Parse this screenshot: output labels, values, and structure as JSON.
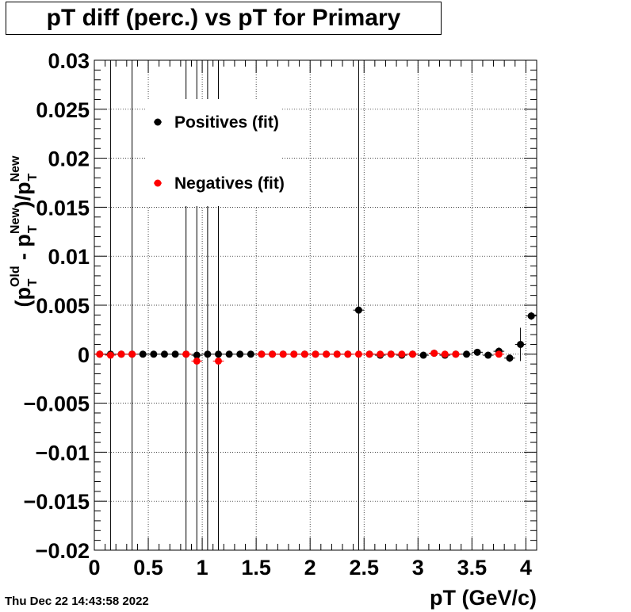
{
  "title": "pT diff (perc.) vs pT for Primary",
  "timestamp": "Thu Dec 22 14:43:58 2022",
  "chart_data": {
    "type": "scatter",
    "xlabel": "pT (GeV/c)",
    "ylabel": "(p_T^Old - p_T^New)/p_T^New",
    "ylabel_parts": {
      "open": "(p",
      "sup1": "Old",
      "sub1": "T",
      "mid": " - p",
      "sup2": "New",
      "sub2": "T",
      "close": ")/p",
      "sup3": "New",
      "sub3": "T"
    },
    "xlim": [
      0,
      4.1
    ],
    "ylim": [
      -0.02,
      0.03
    ],
    "x_ticks": [
      0,
      0.5,
      1,
      1.5,
      2,
      2.5,
      3,
      3.5,
      4
    ],
    "x_tick_labels": [
      "0",
      "0.5",
      "1",
      "1.5",
      "2",
      "2.5",
      "3",
      "3.5",
      "4"
    ],
    "y_ticks": [
      -0.02,
      -0.015,
      -0.01,
      -0.005,
      0,
      0.005,
      0.01,
      0.015,
      0.02,
      0.025,
      0.03
    ],
    "y_tick_labels": [
      "−0.02",
      "−0.015",
      "−0.01",
      "−0.005",
      "0",
      "0.005",
      "0.01",
      "0.015",
      "0.02",
      "0.025",
      "0.03"
    ],
    "grid": true,
    "legend_position": "top-left",
    "series": [
      {
        "name": "Positives (fit)",
        "color": "#000000",
        "points": [
          {
            "x": 0.05,
            "y": 0.0,
            "err": 0.0
          },
          {
            "x": 0.15,
            "y": 0.0,
            "err": 0.0
          },
          {
            "x": 0.25,
            "y": 0.0,
            "err": 0.0
          },
          {
            "x": 0.35,
            "y": 0.0,
            "err": 0.0
          },
          {
            "x": 0.45,
            "y": 0.0,
            "err": 0.0
          },
          {
            "x": 0.55,
            "y": 0.0,
            "err": 0.0
          },
          {
            "x": 0.65,
            "y": 0.0,
            "err": 0.0
          },
          {
            "x": 0.75,
            "y": 0.0,
            "err": 0.0
          },
          {
            "x": 0.85,
            "y": 0.0,
            "err": 0.0
          },
          {
            "x": 0.95,
            "y": -0.0001,
            "err": 0.0
          },
          {
            "x": 1.05,
            "y": 0.0,
            "err": 0.0
          },
          {
            "x": 1.15,
            "y": 0.0,
            "err": 0.0
          },
          {
            "x": 1.25,
            "y": 0.0,
            "err": 0.0
          },
          {
            "x": 1.35,
            "y": 0.0,
            "err": 0.0
          },
          {
            "x": 1.45,
            "y": 0.0,
            "err": 0.0
          },
          {
            "x": 1.55,
            "y": 0.0,
            "err": 0.0
          },
          {
            "x": 1.65,
            "y": 0.0,
            "err": 0.0
          },
          {
            "x": 1.75,
            "y": 0.0,
            "err": 0.0
          },
          {
            "x": 1.85,
            "y": 0.0,
            "err": 0.0
          },
          {
            "x": 1.95,
            "y": 0.0,
            "err": 0.0
          },
          {
            "x": 2.05,
            "y": 0.0,
            "err": 0.0
          },
          {
            "x": 2.15,
            "y": 0.0,
            "err": 0.0
          },
          {
            "x": 2.25,
            "y": 0.0,
            "err": 0.0
          },
          {
            "x": 2.35,
            "y": 0.0,
            "err": 0.0
          },
          {
            "x": 2.45,
            "y": 0.0045,
            "err": 0.0
          },
          {
            "x": 2.55,
            "y": 0.0,
            "err": 0.0
          },
          {
            "x": 2.65,
            "y": -0.0001,
            "err": 0.0
          },
          {
            "x": 2.75,
            "y": 0.0,
            "err": 0.0
          },
          {
            "x": 2.85,
            "y": -0.0001,
            "err": 0.0
          },
          {
            "x": 2.95,
            "y": 0.0,
            "err": 0.0
          },
          {
            "x": 3.05,
            "y": -0.0001,
            "err": 0.0
          },
          {
            "x": 3.15,
            "y": 0.0001,
            "err": 0.0
          },
          {
            "x": 3.25,
            "y": -0.0001,
            "err": 0.0
          },
          {
            "x": 3.35,
            "y": 0.0,
            "err": 0.0
          },
          {
            "x": 3.45,
            "y": 0.0,
            "err": 0.0
          },
          {
            "x": 3.55,
            "y": 0.0002,
            "err": 0.0
          },
          {
            "x": 3.65,
            "y": -0.0001,
            "err": 0.0
          },
          {
            "x": 3.75,
            "y": 0.0003,
            "err": 0.0004
          },
          {
            "x": 3.85,
            "y": -0.0004,
            "err": 0.0004
          },
          {
            "x": 3.95,
            "y": 0.001,
            "err": 0.0017
          },
          {
            "x": 4.05,
            "y": 0.0039,
            "err": 0.0004
          }
        ]
      },
      {
        "name": "Negatives (fit)",
        "color": "#ff0000",
        "points": [
          {
            "x": 0.05,
            "y": 0.0,
            "err": 0.0
          },
          {
            "x": 0.15,
            "y": -0.0001,
            "err": 0.0
          },
          {
            "x": 0.25,
            "y": 0.0,
            "err": 0.0
          },
          {
            "x": 0.35,
            "y": 0.0,
            "err": 0.0
          },
          {
            "x": 0.85,
            "y": 0.0,
            "err": 0.0
          },
          {
            "x": 0.95,
            "y": -0.0007,
            "err": 0.0
          },
          {
            "x": 1.15,
            "y": -0.0007,
            "err": 0.0
          },
          {
            "x": 1.55,
            "y": 0.0,
            "err": 0.0
          },
          {
            "x": 1.65,
            "y": 0.0,
            "err": 0.0
          },
          {
            "x": 1.75,
            "y": 0.0,
            "err": 0.0
          },
          {
            "x": 1.85,
            "y": 0.0,
            "err": 0.0
          },
          {
            "x": 1.95,
            "y": 0.0,
            "err": 0.0
          },
          {
            "x": 2.05,
            "y": 0.0,
            "err": 0.0
          },
          {
            "x": 2.15,
            "y": 0.0,
            "err": 0.0
          },
          {
            "x": 2.25,
            "y": 0.0,
            "err": 0.0
          },
          {
            "x": 2.35,
            "y": 0.0,
            "err": 0.0
          },
          {
            "x": 2.45,
            "y": 0.0,
            "err": 0.0
          },
          {
            "x": 2.55,
            "y": 0.0,
            "err": 0.0
          },
          {
            "x": 2.65,
            "y": 0.0,
            "err": 0.0
          },
          {
            "x": 2.75,
            "y": 0.0,
            "err": 0.0
          },
          {
            "x": 2.85,
            "y": 0.0,
            "err": 0.0
          },
          {
            "x": 2.95,
            "y": 0.0,
            "err": 0.0
          },
          {
            "x": 3.15,
            "y": 0.0001,
            "err": 0.0
          },
          {
            "x": 3.25,
            "y": 0.0,
            "err": 0.0
          },
          {
            "x": 3.35,
            "y": 0.0,
            "err": 0.0
          },
          {
            "x": 3.75,
            "y": 0.0,
            "err": 0.0
          }
        ]
      }
    ],
    "long_error_bars": [
      {
        "x": 0.15,
        "series": "Positives (fit)"
      },
      {
        "x": 0.35,
        "series": "Positives (fit)"
      },
      {
        "x": 0.85,
        "series": "Positives (fit)"
      },
      {
        "x": 0.95,
        "series": "Positives (fit)"
      },
      {
        "x": 1.05,
        "series": "Positives (fit)"
      },
      {
        "x": 1.15,
        "series": "Positives (fit)"
      },
      {
        "x": 2.45,
        "series": "Positives (fit)"
      }
    ]
  }
}
